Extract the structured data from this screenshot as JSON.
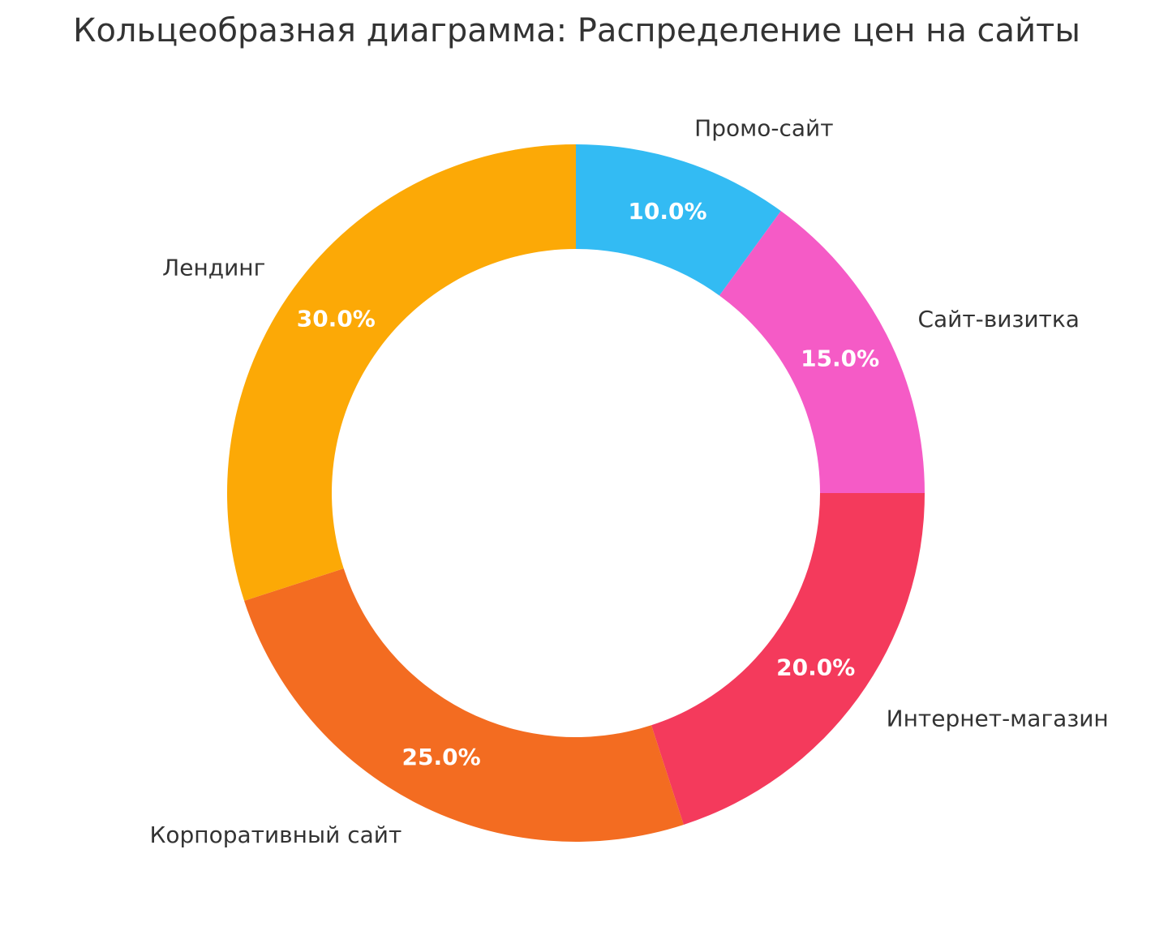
{
  "title": "Кольцеобразная диаграмма: Распределение цен на сайты",
  "chart_data": {
    "type": "pie",
    "subtype": "donut",
    "title": "Кольцеобразная диаграмма: Распределение цен на сайты",
    "categories": [
      "Промо-сайт",
      "Сайт-визитка",
      "Интернет-магазин",
      "Корпоративный сайт",
      "Лендинг"
    ],
    "values": [
      10.0,
      15.0,
      20.0,
      25.0,
      30.0
    ],
    "percent_labels": [
      "10.0%",
      "15.0%",
      "20.0%",
      "25.0%",
      "30.0%"
    ],
    "colors": [
      "#33BBF3",
      "#F55BC6",
      "#F43A5C",
      "#F36C21",
      "#FCA906"
    ],
    "start_angle_deg": 90,
    "direction": "clockwise",
    "inner_radius_ratio": 0.7,
    "pct_distance_ratio": 0.85,
    "label_distance_ratio": 1.1,
    "legend": "none",
    "background_color": "#FFFFFF",
    "label_color": "#333333",
    "pct_label_color": "#FFFFFF"
  }
}
